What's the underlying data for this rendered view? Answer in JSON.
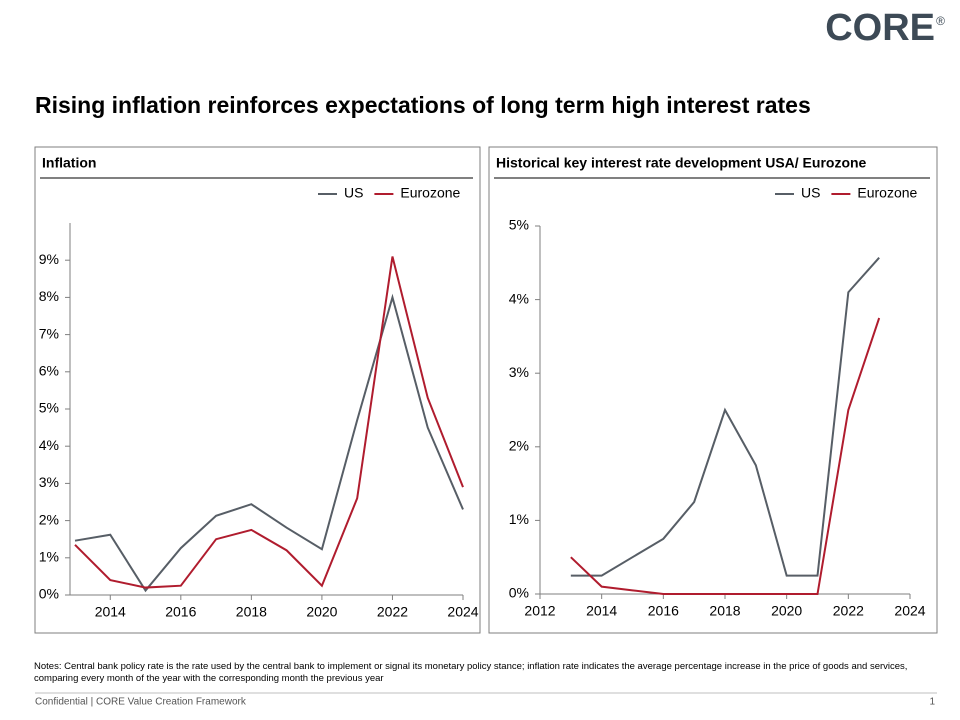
{
  "logo": "CORE",
  "logo_mark": "®",
  "title": "Rising inflation reinforces expectations of long term high interest rates",
  "chart_data": [
    {
      "type": "line",
      "title": "Inflation",
      "x": [
        2013,
        2014,
        2015,
        2016,
        2017,
        2018,
        2019,
        2020,
        2021,
        2022,
        2023,
        2024
      ],
      "series": [
        {
          "name": "US",
          "color": "#575e66",
          "values": [
            1.46,
            1.62,
            0.12,
            1.26,
            2.13,
            2.44,
            1.81,
            1.23,
            4.7,
            8.0,
            4.5,
            2.3
          ]
        },
        {
          "name": "Eurozone",
          "color": "#b01c2e",
          "values": [
            1.35,
            0.4,
            0.2,
            0.25,
            1.5,
            1.75,
            1.2,
            0.25,
            2.6,
            9.1,
            5.3,
            2.9
          ]
        }
      ],
      "xlim": [
        2013,
        2024
      ],
      "xticks": [
        2014,
        2016,
        2018,
        2020,
        2022,
        2024
      ],
      "ylim": [
        0,
        10
      ],
      "yticks": [
        {
          "value": 0,
          "label": "0%"
        },
        {
          "value": 1,
          "label": "1%"
        },
        {
          "value": 2,
          "label": "2%"
        },
        {
          "value": 3,
          "label": "3%"
        },
        {
          "value": 4,
          "label": "4%"
        },
        {
          "value": 5,
          "label": "5%"
        },
        {
          "value": 6,
          "label": "6%"
        },
        {
          "value": 7,
          "label": "7%"
        },
        {
          "value": 8,
          "label": "8%"
        },
        {
          "value": 9,
          "label": "9%"
        }
      ],
      "grid": false,
      "legend": "top-right"
    },
    {
      "type": "line",
      "title": "Historical key interest rate development USA/ Eurozone",
      "x": [
        2013,
        2014,
        2015,
        2016,
        2017,
        2018,
        2019,
        2020,
        2021,
        2022,
        2023
      ],
      "series": [
        {
          "name": "US",
          "color": "#575e66",
          "values": [
            0.25,
            0.25,
            0.5,
            0.75,
            1.25,
            2.5,
            1.75,
            0.25,
            0.25,
            4.1,
            4.57
          ]
        },
        {
          "name": "Eurozone",
          "color": "#b01c2e",
          "values": [
            0.5,
            0.1,
            0.05,
            0,
            0,
            0,
            0,
            0,
            0,
            2.5,
            3.75
          ]
        }
      ],
      "xlim": [
        2012,
        2024
      ],
      "xticks": [
        2012,
        2014,
        2016,
        2018,
        2020,
        2022,
        2024
      ],
      "ylim": [
        0,
        5
      ],
      "yticks": [
        {
          "value": 0,
          "label": "0%"
        },
        {
          "value": 1,
          "label": "1%"
        },
        {
          "value": 2,
          "label": "2%"
        },
        {
          "value": 3,
          "label": "3%"
        },
        {
          "value": 4,
          "label": "4%"
        },
        {
          "value": 5,
          "label": "5%"
        }
      ],
      "grid": false,
      "legend": "top-right"
    }
  ],
  "notes": "Notes: Central bank policy rate is the rate used by the central bank to implement  or signal its monetary policy stance; inflation rate indicates the average percentage increase in the price of goods and services, comparing every month of the year with the corresponding month the previous year",
  "footer": "Confidential | CORE  Value Creation Framework",
  "page_number": 1
}
